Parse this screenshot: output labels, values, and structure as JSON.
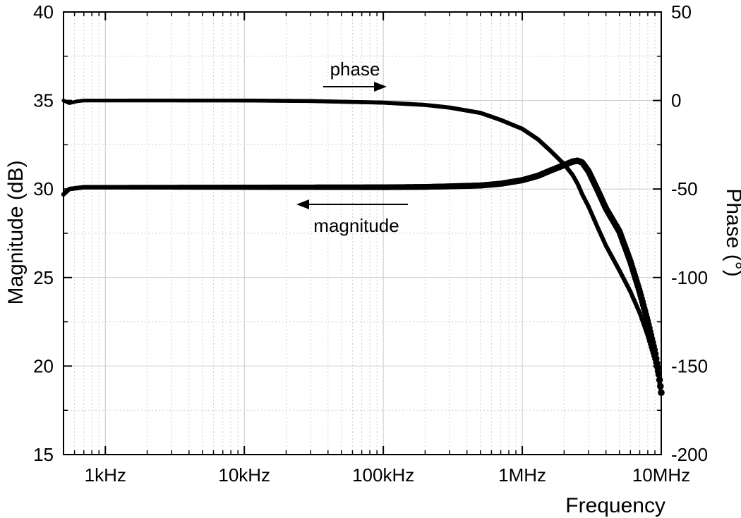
{
  "chart_data": {
    "type": "scatter",
    "title": "",
    "xlabel": "Frequency",
    "ylabel_left": "Magnitude (dB)",
    "ylabel_right": "Phase (°)",
    "x_scale": "log",
    "xlim_hz": [
      500,
      10000000
    ],
    "ylim_left": [
      15,
      40
    ],
    "ylim_right": [
      -200,
      50
    ],
    "x_ticks": [
      {
        "value": 1000,
        "label": "1kHz"
      },
      {
        "value": 10000,
        "label": "10kHz"
      },
      {
        "value": 100000,
        "label": "100kHz"
      },
      {
        "value": 1000000,
        "label": "1MHz"
      },
      {
        "value": 10000000,
        "label": "10MHz"
      }
    ],
    "y_left_ticks": [
      "15",
      "20",
      "25",
      "30",
      "35",
      "40"
    ],
    "y_right_ticks": [
      "-200",
      "-150",
      "-100",
      "-50",
      "0",
      "50"
    ],
    "grid": true,
    "annotations": {
      "phase": {
        "text": "phase",
        "arrow": "right",
        "axis": "right"
      },
      "magnitude": {
        "text": "magnitude",
        "arrow": "left",
        "axis": "left"
      }
    },
    "series": [
      {
        "name": "magnitude",
        "axis": "left",
        "marker": "large-dot",
        "x_hz": [
          500,
          550,
          620,
          700,
          800,
          1000,
          2000,
          5000,
          10000,
          30000,
          100000,
          200000,
          300000,
          500000,
          700000,
          1000000,
          1300000,
          1600000,
          2000000,
          2300000,
          2500000,
          2700000,
          3000000,
          3500000,
          4000000,
          5000000,
          6000000,
          7000000,
          8000000,
          9000000,
          9500000,
          10000000
        ],
        "values": [
          29.7,
          30.0,
          30.05,
          30.1,
          30.1,
          30.1,
          30.1,
          30.1,
          30.1,
          30.1,
          30.1,
          30.12,
          30.15,
          30.2,
          30.3,
          30.5,
          30.75,
          31.05,
          31.35,
          31.55,
          31.6,
          31.5,
          31.0,
          29.9,
          28.9,
          27.6,
          25.9,
          24.2,
          22.5,
          20.8,
          19.8,
          18.5
        ]
      },
      {
        "name": "phase",
        "axis": "right",
        "marker": "small-dot",
        "x_hz": [
          500,
          550,
          620,
          700,
          800,
          1000,
          2000,
          5000,
          10000,
          30000,
          100000,
          200000,
          300000,
          500000,
          700000,
          1000000,
          1300000,
          1600000,
          2000000,
          2300000,
          2500000,
          2700000,
          3000000,
          3500000,
          4000000,
          5000000,
          6000000,
          7000000,
          8000000,
          9000000,
          9500000,
          10000000
        ],
        "values": [
          0,
          -1.5,
          -0.5,
          0,
          0,
          0,
          0,
          0,
          0,
          -0.3,
          -1.2,
          -2.5,
          -4,
          -7,
          -11,
          -16,
          -22,
          -28.5,
          -36,
          -42,
          -47,
          -53,
          -60,
          -72,
          -82,
          -96,
          -108,
          -120,
          -133,
          -147,
          -156,
          -165
        ]
      }
    ]
  }
}
